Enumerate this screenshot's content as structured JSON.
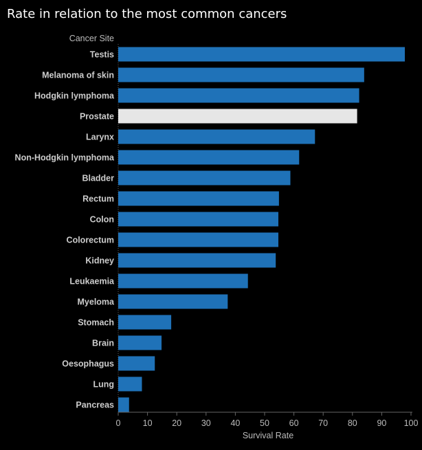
{
  "chart_data": {
    "type": "bar",
    "orientation": "horizontal",
    "title": "Rate in relation to the most common cancers",
    "category_axis_title": "Cancer Site",
    "xlabel": "Survival Rate",
    "xlim": [
      0,
      100
    ],
    "xticks": [
      0,
      10,
      20,
      30,
      40,
      50,
      60,
      70,
      80,
      90,
      100
    ],
    "grid": false,
    "categories": [
      "Testis",
      "Melanoma of skin",
      "Hodgkin lymphoma",
      "Prostate",
      "Larynx",
      "Non-Hodgkin lymphoma",
      "Bladder",
      "Rectum",
      "Colon",
      "Colorectum",
      "Kidney",
      "Leukaemia",
      "Myeloma",
      "Stomach",
      "Brain",
      "Oesophagus",
      "Lung",
      "Pancreas"
    ],
    "values": [
      97.9,
      84,
      82.3,
      81.6,
      67.2,
      61.8,
      58.8,
      54.9,
      54.7,
      54.7,
      53.8,
      44.3,
      37.4,
      18.1,
      14.8,
      12.5,
      8.1,
      3.7
    ],
    "colors": {
      "default": "#1f72b8",
      "highlight": "#e6e6e6",
      "highlight_category": "Prostate",
      "background": "#000000"
    }
  }
}
